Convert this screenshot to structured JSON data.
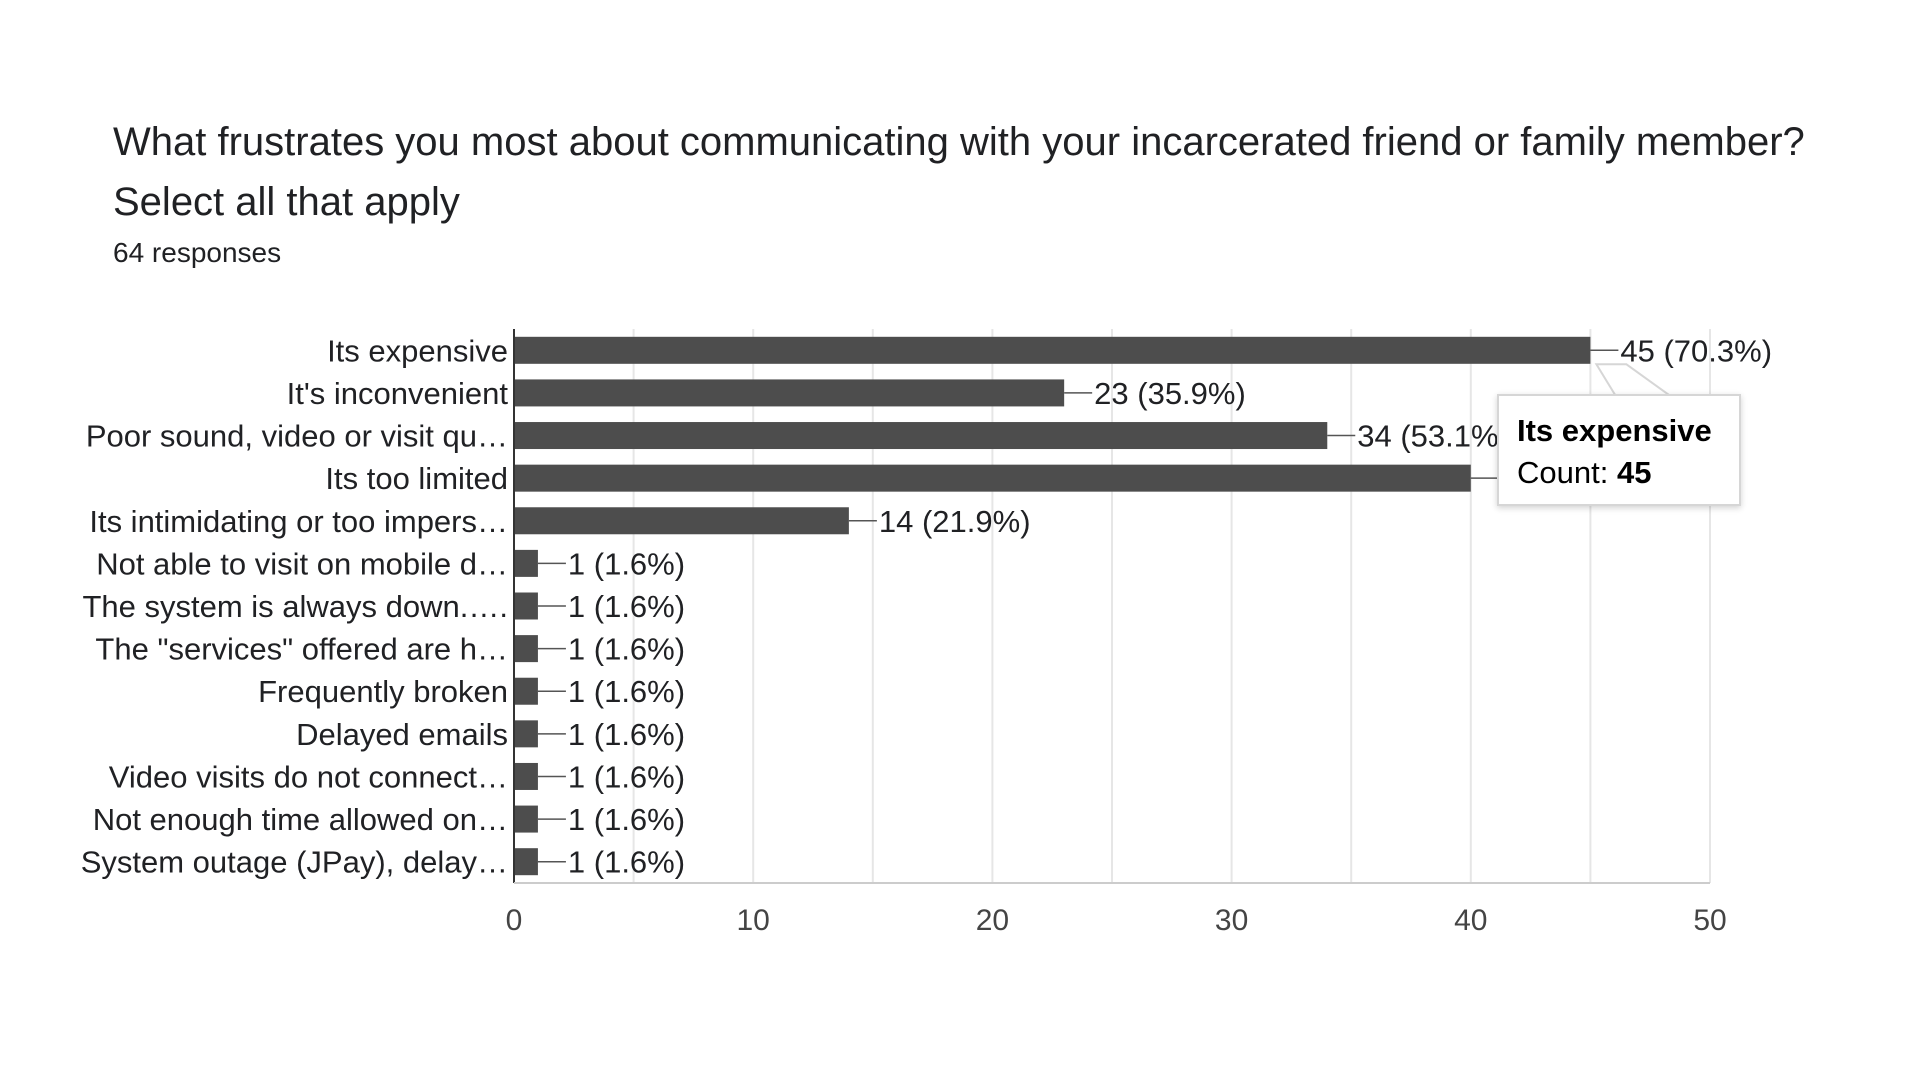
{
  "question": {
    "title": "What frustrates you most about communicating with your incarcerated friend or family member? Select all that apply",
    "responses": "64 responses"
  },
  "colors": {
    "bar": "#4d4d4d",
    "grid": "#e6e6e6",
    "axis": "#333333"
  },
  "tooltip": {
    "title": "Its expensive",
    "count_label": "Count:",
    "count_value": "45"
  },
  "chart_data": {
    "type": "bar",
    "orientation": "horizontal",
    "title": "What frustrates you most about communicating with your incarcerated friend or family member? Select all that apply",
    "xlim": [
      0,
      50
    ],
    "xticks": [
      0,
      10,
      20,
      30,
      40,
      50
    ],
    "grid": true,
    "categories": [
      "Its expensive",
      "It's inconvenient",
      "Poor sound, video or visit qu…",
      "Its too limited",
      "Its intimidating or too impers…",
      "Not able to visit on mobile d…",
      "The system is always down.….",
      "The \"services\" offered are h…",
      "Frequently broken",
      "Delayed emails",
      "Video visits do not connect…",
      "Not enough time allowed on…",
      "System outage (JPay), delay…"
    ],
    "values": [
      45,
      23,
      34,
      40,
      14,
      1,
      1,
      1,
      1,
      1,
      1,
      1,
      1
    ],
    "data_labels": [
      "45 (70.3%)",
      "23 (35.9%)",
      "34 (53.1%",
      "",
      "14 (21.9%)",
      "1 (1.6%)",
      "1 (1.6%)",
      "1 (1.6%)",
      "1 (1.6%)",
      "1 (1.6%)",
      "1 (1.6%)",
      "1 (1.6%)",
      "1 (1.6%)"
    ]
  }
}
